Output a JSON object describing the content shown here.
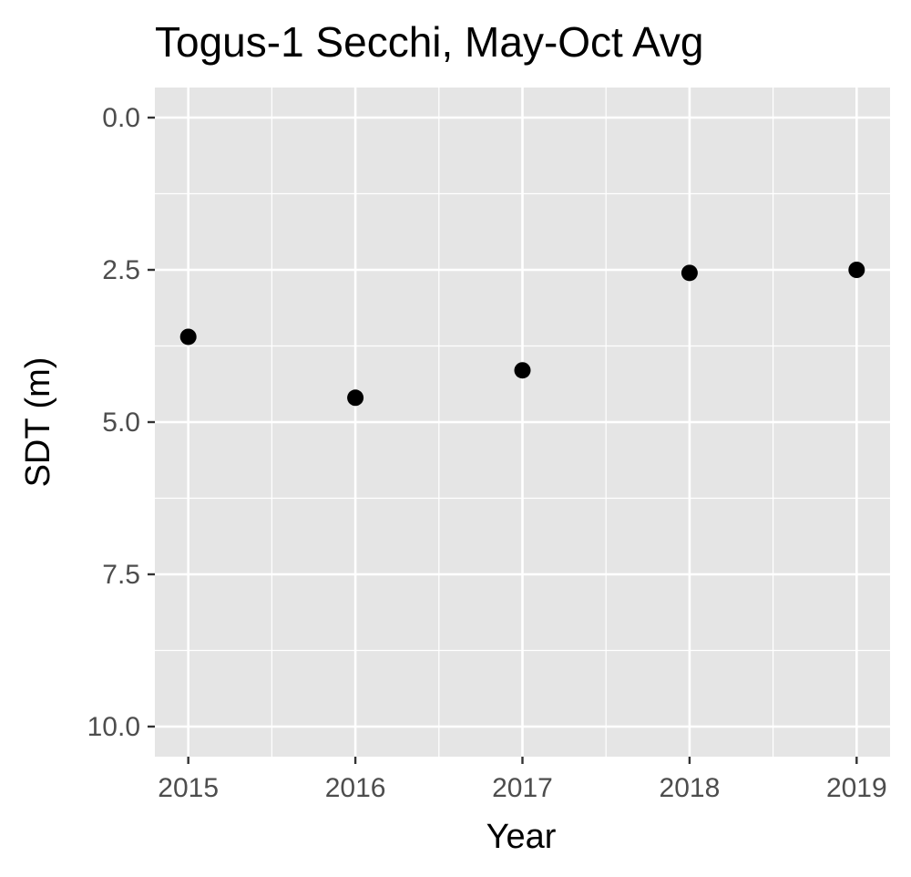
{
  "chart_data": {
    "type": "scatter",
    "title": "Togus-1 Secchi, May-Oct Avg",
    "xlabel": "Year",
    "ylabel": "SDT (m)",
    "x": [
      2015,
      2016,
      2017,
      2018,
      2019
    ],
    "y": [
      3.6,
      4.6,
      4.15,
      2.55,
      2.5
    ],
    "xlim": [
      2014.8,
      2019.2
    ],
    "ylim": [
      0,
      10.5
    ],
    "y_reversed": true,
    "xticks": [
      2015,
      2016,
      2017,
      2018,
      2019
    ],
    "xtick_labels": [
      "2015",
      "2016",
      "2017",
      "2018",
      "2019"
    ],
    "yticks": [
      0,
      2.5,
      5,
      7.5,
      10
    ],
    "ytick_labels": [
      "0.0",
      "2.5",
      "5.0",
      "7.5",
      "10.0"
    ],
    "grid": true,
    "legend": "none",
    "colors": {
      "panel": "#e5e5e5",
      "grid": "#ffffff",
      "point": "#000000",
      "tick_text": "#4d4d4d"
    }
  }
}
